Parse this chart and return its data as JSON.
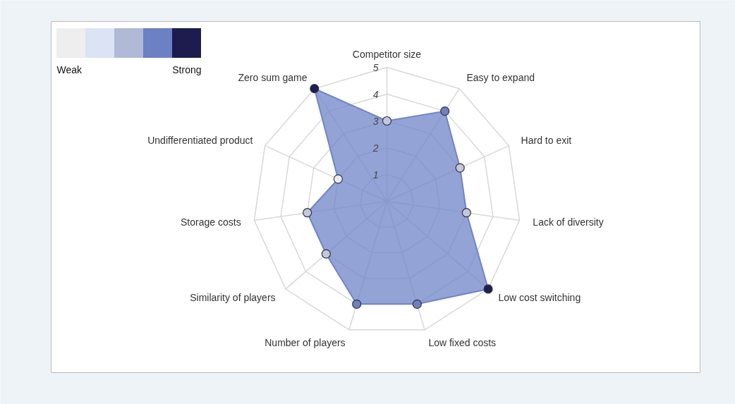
{
  "chart_data": {
    "type": "radar",
    "categories": [
      "Competitor size",
      "Easy to expand",
      "Hard to exit",
      "Lack of diversity",
      "Low cost switching",
      "Low fixed costs",
      "Number of players",
      "Similarity of players",
      "Storage costs",
      "Undifferentiated product",
      "Zero sum game"
    ],
    "series": [
      {
        "color": "#6f84c8",
        "values": [
          3,
          4,
          3,
          3,
          5,
          4,
          4,
          3,
          3,
          2,
          5
        ],
        "colors": [
          "#c3c8da",
          "#6f7fc0",
          "#c3c8da",
          "#c3c8da",
          "#1e1f50",
          "#6f7fc0",
          "#6f7fc0",
          "#c3c8da",
          "#c3c8da",
          "#ececf0",
          "#1e1f50"
        ]
      }
    ],
    "ylim": [
      0,
      5
    ],
    "yticks": [
      1,
      2,
      3,
      4,
      5
    ],
    "grid": true,
    "marker": "circle",
    "colors": [
      "#eeeeee",
      "#dbe3f5",
      "#b0b9d6",
      "#6c80c4",
      "#1c1c4e"
    ],
    "annotations": [
      "Weak",
      "Strong"
    ]
  }
}
